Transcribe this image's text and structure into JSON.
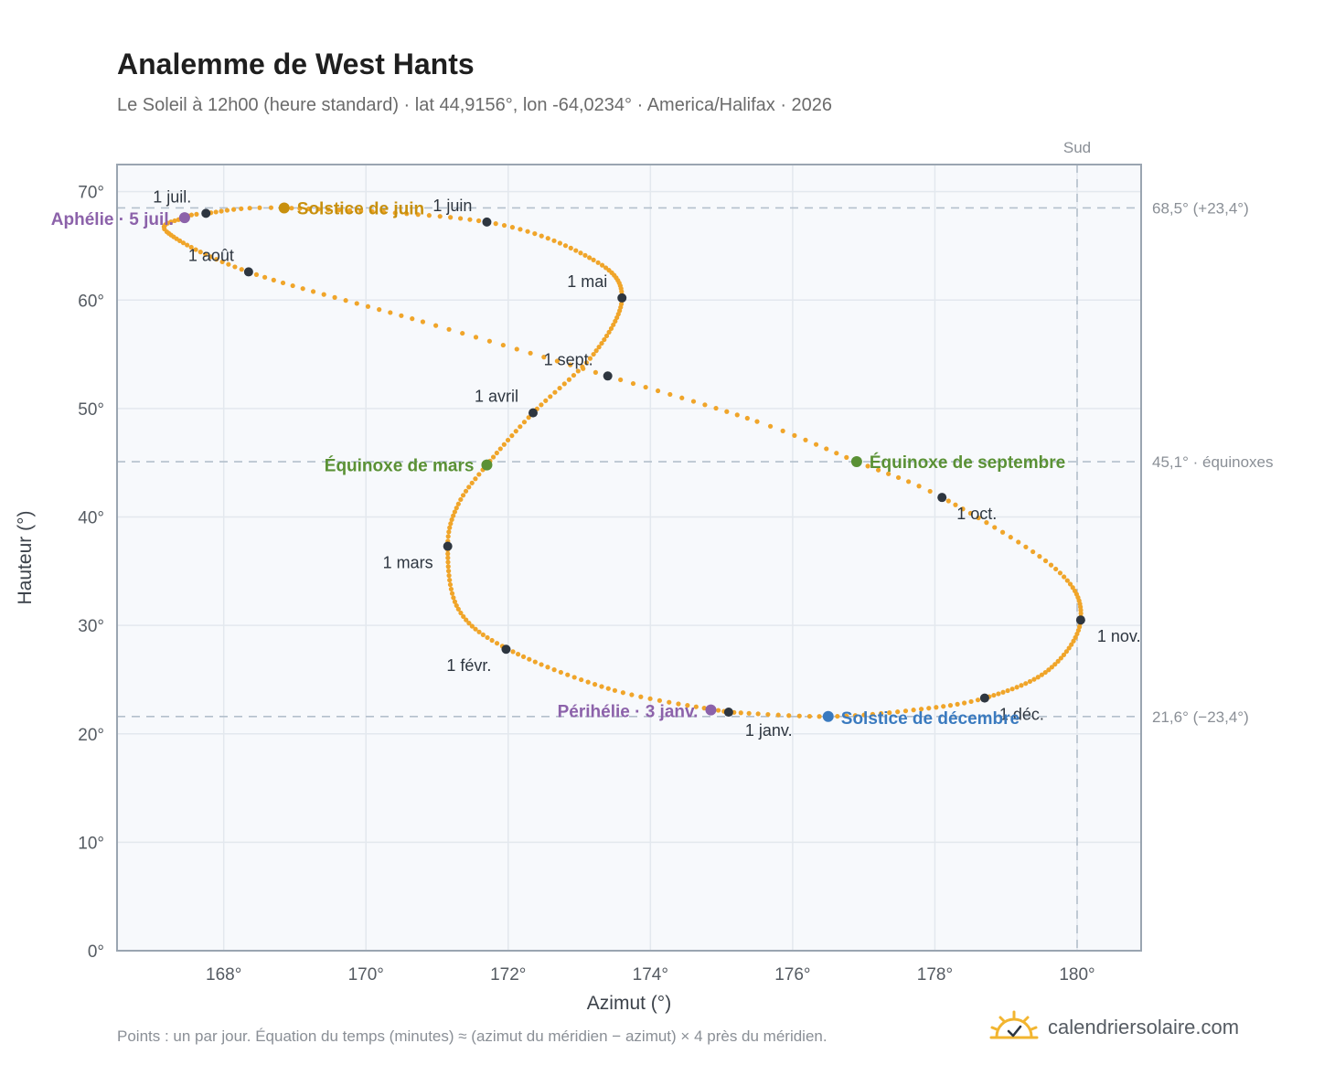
{
  "title": "Analemme de West Hants",
  "subtitle": "Le Soleil à 12h00 (heure standard) · lat 44,9156°, lon -64,0234° · America/Halifax · 2026",
  "footnote": "Points : un par jour. Équation du temps (minutes) ≈ (azimut du méridien − azimut) × 4 près du méridien.",
  "brand": {
    "name": "calendriersolaire.com",
    "icon": "sun-check-icon"
  },
  "colors": {
    "curve": "#f0a52a",
    "month": "#2e3640",
    "aphelion": "#8c62aa",
    "perihelion": "#8c62aa",
    "june_solstice": "#c8900e",
    "december_solstice": "#3a7abf",
    "equinox": "#5a9135",
    "reference_line": "#b4c0cc",
    "plot_bg": "#f7f9fc",
    "grid": "#e3e8ee",
    "frame": "#9aa5b1"
  },
  "chart_data": {
    "type": "scatter",
    "xlabel": "Azimut (°)",
    "ylabel": "Hauteur (°)",
    "xlim": [
      166.5,
      180.9
    ],
    "ylim": [
      0,
      72.5
    ],
    "xticks": [
      168,
      170,
      172,
      174,
      176,
      178,
      180
    ],
    "xtick_labels": [
      "168°",
      "170°",
      "172°",
      "174°",
      "176°",
      "178°",
      "180°"
    ],
    "yticks": [
      0,
      10,
      20,
      30,
      40,
      50,
      60,
      70
    ],
    "ytick_labels": [
      "0°",
      "10°",
      "20°",
      "30°",
      "40°",
      "50°",
      "60°",
      "70°"
    ],
    "grid": true,
    "series": [
      {
        "points_per": "day",
        "anchor_points": [
          {
            "doy": 1,
            "x": 175.1,
            "y": 22.0
          },
          {
            "doy": 15,
            "x": 173.5,
            "y": 24.0
          },
          {
            "doy": 32,
            "x": 172.0,
            "y": 27.8
          },
          {
            "doy": 45,
            "x": 171.3,
            "y": 31.5
          },
          {
            "doy": 60,
            "x": 171.15,
            "y": 37.3
          },
          {
            "doy": 70,
            "x": 171.3,
            "y": 41.2
          },
          {
            "doy": 79,
            "x": 171.7,
            "y": 44.8
          },
          {
            "doy": 91,
            "x": 172.35,
            "y": 49.6
          },
          {
            "doy": 105,
            "x": 173.2,
            "y": 55.0
          },
          {
            "doy": 121,
            "x": 173.6,
            "y": 60.2
          },
          {
            "doy": 135,
            "x": 173.2,
            "y": 63.7
          },
          {
            "doy": 152,
            "x": 171.7,
            "y": 67.2
          },
          {
            "doy": 172,
            "x": 168.85,
            "y": 68.5
          },
          {
            "doy": 182,
            "x": 167.75,
            "y": 68.0
          },
          {
            "doy": 186,
            "x": 167.45,
            "y": 67.6
          },
          {
            "doy": 195,
            "x": 167.2,
            "y": 66.3
          },
          {
            "doy": 213,
            "x": 168.35,
            "y": 62.6
          },
          {
            "doy": 230,
            "x": 170.8,
            "y": 58.0
          },
          {
            "doy": 244,
            "x": 173.4,
            "y": 53.0
          },
          {
            "doy": 257,
            "x": 175.5,
            "y": 48.8
          },
          {
            "doy": 266,
            "x": 176.9,
            "y": 45.1
          },
          {
            "doy": 274,
            "x": 178.1,
            "y": 41.8
          },
          {
            "doy": 290,
            "x": 179.7,
            "y": 35.2
          },
          {
            "doy": 305,
            "x": 180.05,
            "y": 30.5
          },
          {
            "doy": 320,
            "x": 179.6,
            "y": 25.9
          },
          {
            "doy": 335,
            "x": 178.7,
            "y": 23.3
          },
          {
            "doy": 345,
            "x": 177.7,
            "y": 22.2
          },
          {
            "doy": 355,
            "x": 176.5,
            "y": 21.6
          },
          {
            "doy": 366,
            "x": 175.1,
            "y": 22.0
          }
        ]
      }
    ],
    "month_markers": [
      {
        "label": "1 janv.",
        "x": 175.1,
        "y": 22.0,
        "anchor": "start",
        "dx": 18,
        "dy": 26
      },
      {
        "label": "1 févr.",
        "x": 171.97,
        "y": 27.8,
        "anchor": "end",
        "dx": -16,
        "dy": 24
      },
      {
        "label": "1 mars",
        "x": 171.15,
        "y": 37.3,
        "anchor": "end",
        "dx": -16,
        "dy": 24
      },
      {
        "label": "1 avril",
        "x": 172.35,
        "y": 49.6,
        "anchor": "end",
        "dx": -16,
        "dy": -12
      },
      {
        "label": "1 mai",
        "x": 173.6,
        "y": 60.2,
        "anchor": "end",
        "dx": -16,
        "dy": -12
      },
      {
        "label": "1 juin",
        "x": 171.7,
        "y": 67.2,
        "anchor": "end",
        "dx": -16,
        "dy": -12
      },
      {
        "label": "1 juil.",
        "x": 167.75,
        "y": 68.0,
        "anchor": "end",
        "dx": -16,
        "dy": -12
      },
      {
        "label": "1 août",
        "x": 168.35,
        "y": 62.6,
        "anchor": "end",
        "dx": -16,
        "dy": -12
      },
      {
        "label": "1 sept.",
        "x": 173.4,
        "y": 53.0,
        "anchor": "end",
        "dx": -16,
        "dy": -12
      },
      {
        "label": "1 oct.",
        "x": 178.1,
        "y": 41.8,
        "anchor": "start",
        "dx": 16,
        "dy": 24
      },
      {
        "label": "1 nov.",
        "x": 180.05,
        "y": 30.5,
        "anchor": "start",
        "dx": 18,
        "dy": 24
      },
      {
        "label": "1 déc.",
        "x": 178.7,
        "y": 23.3,
        "anchor": "start",
        "dx": 16,
        "dy": 24
      }
    ],
    "events": [
      {
        "label": "Aphélie · 5 juil.",
        "x": 167.45,
        "y": 67.6,
        "color_key": "aphelion",
        "anchor": "end",
        "dx": -12,
        "dy": 8
      },
      {
        "label": "Solstice de juin",
        "x": 168.85,
        "y": 68.5,
        "color_key": "june_solstice",
        "anchor": "start",
        "dx": 14,
        "dy": 7
      },
      {
        "label": "Équinoxe de mars",
        "x": 171.7,
        "y": 44.8,
        "color_key": "equinox",
        "anchor": "end",
        "dx": -14,
        "dy": 7
      },
      {
        "label": "Équinoxe de septembre",
        "x": 176.9,
        "y": 45.1,
        "color_key": "equinox",
        "anchor": "start",
        "dx": 14,
        "dy": 7
      },
      {
        "label": "Périhélie · 3 janv.",
        "x": 174.85,
        "y": 22.2,
        "color_key": "perihelion",
        "anchor": "end",
        "dx": -14,
        "dy": 8
      },
      {
        "label": "Solstice de décembre",
        "x": 176.5,
        "y": 21.6,
        "color_key": "december_solstice",
        "anchor": "start",
        "dx": 14,
        "dy": 8
      }
    ],
    "reference_lines": [
      {
        "orientation": "horizontal",
        "value": 68.5,
        "label": "68,5° (+23,4°)"
      },
      {
        "orientation": "horizontal",
        "value": 45.1,
        "label": "45,1° · équinoxes"
      },
      {
        "orientation": "horizontal",
        "value": 21.6,
        "label": "21,6° (−23,4°)"
      },
      {
        "orientation": "vertical",
        "value": 180.0,
        "label": "Sud"
      }
    ]
  }
}
